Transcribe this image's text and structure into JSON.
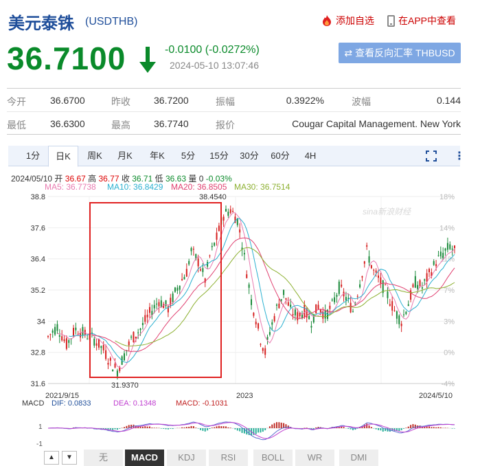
{
  "header": {
    "title": "美元泰铢",
    "code": "(USDTHB)",
    "favorite_label": "添加自选",
    "app_label": "在APP中查看"
  },
  "quote": {
    "price": "36.7100",
    "change": "-0.0100 (-0.0272%)",
    "time": "2024-05-10 13:07:46",
    "reverse_label": "查看反向汇率 THBUSD"
  },
  "stats": {
    "open_label": "今开",
    "open": "36.6700",
    "prev_close_label": "昨收",
    "prev_close": "36.7200",
    "amplitude_label": "振幅",
    "amplitude": "0.3922%",
    "wave_label": "波幅",
    "wave": "0.144",
    "low_label": "最低",
    "low": "36.6300",
    "high_label": "最高",
    "high": "36.7740",
    "quote_label": "报价",
    "quote_source": "Cougar Capital Management. New York"
  },
  "tabs": [
    "1分",
    "日K",
    "周K",
    "月K",
    "年K",
    "5分",
    "15分",
    "30分",
    "60分",
    "4H"
  ],
  "active_tab": "日K",
  "ohlc": {
    "date": "2024/05/10",
    "open_label": "开",
    "open": "36.67",
    "high_label": "高",
    "high": "36.77",
    "close_label": "收",
    "close": "36.71",
    "low_label": "低",
    "low": "36.63",
    "vol_label": "量",
    "vol": "0",
    "pct": "-0.03%"
  },
  "ma": [
    {
      "label": "MA5: 36.7738",
      "color": "#e87ab0"
    },
    {
      "label": "MA10: 36.8429",
      "color": "#2ab0d0"
    },
    {
      "label": "MA20: 36.8505",
      "color": "#e04070"
    },
    {
      "label": "MA30: 36.7514",
      "color": "#8cb030"
    }
  ],
  "watermark": "sina新浪财经",
  "chart_data": {
    "type": "candlestick",
    "y_ticks": [
      "38.8",
      "37.6",
      "36.4",
      "35.2",
      "34",
      "32.8",
      "31.6"
    ],
    "pct_ticks": [
      "18%",
      "14%",
      "11%",
      "7%",
      "3%",
      "0%",
      "-4%"
    ],
    "x_labels": [
      "2021/9/15",
      "2023",
      "2024/5/10"
    ],
    "annotations": {
      "max": "38.4540",
      "min": "31.9370"
    },
    "highlight_box": true,
    "trend": [
      [
        0,
        33.4
      ],
      [
        4,
        33.8
      ],
      [
        8,
        33.1
      ],
      [
        12,
        33.7
      ],
      [
        16,
        33.5
      ],
      [
        20,
        33.3
      ],
      [
        24,
        32.9
      ],
      [
        27,
        32.4
      ],
      [
        30,
        32.1
      ],
      [
        33,
        32.7
      ],
      [
        36,
        33.3
      ],
      [
        40,
        33.7
      ],
      [
        44,
        34.3
      ],
      [
        48,
        34.8
      ],
      [
        52,
        34.5
      ],
      [
        56,
        35.3
      ],
      [
        60,
        35.9
      ],
      [
        62,
        36.7
      ],
      [
        65,
        36.3
      ],
      [
        68,
        35.6
      ],
      [
        70,
        36.5
      ],
      [
        73,
        37.2
      ],
      [
        76,
        38.1
      ],
      [
        79,
        38.3
      ],
      [
        82,
        37.9
      ],
      [
        84,
        37.0
      ],
      [
        86,
        35.9
      ],
      [
        88,
        34.8
      ],
      [
        90,
        34.1
      ],
      [
        92,
        33.3
      ],
      [
        94,
        32.8
      ],
      [
        96,
        33.6
      ],
      [
        99,
        34.5
      ],
      [
        102,
        35.1
      ],
      [
        105,
        34.4
      ],
      [
        108,
        34.2
      ],
      [
        111,
        34.4
      ],
      [
        114,
        34.0
      ],
      [
        117,
        34.6
      ],
      [
        120,
        34.2
      ],
      [
        123,
        34.6
      ],
      [
        126,
        35.3
      ],
      [
        129,
        34.9
      ],
      [
        132,
        34.4
      ],
      [
        135,
        35.5
      ],
      [
        138,
        36.7
      ],
      [
        141,
        35.9
      ],
      [
        144,
        35.5
      ],
      [
        147,
        35.0
      ],
      [
        150,
        34.4
      ],
      [
        153,
        34.0
      ],
      [
        156,
        34.7
      ],
      [
        159,
        35.5
      ],
      [
        162,
        35.3
      ],
      [
        165,
        35.8
      ],
      [
        168,
        36.3
      ],
      [
        171,
        36.6
      ],
      [
        174,
        36.9
      ],
      [
        176,
        36.7
      ]
    ],
    "macd": {
      "label": "MACD",
      "dif": "DIF: 0.0833",
      "dea": "DEA: 0.1348",
      "macd": "MACD: -0.1031",
      "y_ticks": [
        "1",
        "-1"
      ]
    }
  },
  "indicator_tabs": [
    "无",
    "MACD",
    "KDJ",
    "RSI",
    "BOLL",
    "WR",
    "DMI"
  ],
  "active_indicator": "MACD"
}
